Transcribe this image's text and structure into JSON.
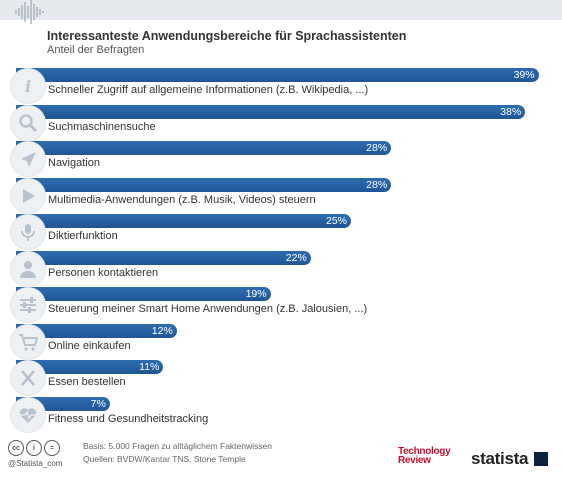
{
  "title": "Interessanteste Anwendungsbereiche für Sprachassistenten",
  "subtitle": "Anteil der Befragten",
  "chart_data": {
    "type": "bar",
    "orientation": "horizontal",
    "title": "Interessanteste Anwendungsbereiche für Sprachassistenten",
    "subtitle": "Anteil der Befragten",
    "xlim": [
      0,
      40
    ],
    "categories": [
      "Schneller Zugriff auf allgemeine Informationen (z.B. Wikipedia, ...)",
      "Suchmaschinensuche",
      "Navigation",
      "Multimedia-Anwendungen (z.B. Musik, Videos) steuern",
      "Diktierfunktion",
      "Personen kontaktieren",
      "Steuerung meiner Smart Home Anwendungen (z.B. Jalousien, ...)",
      "Online einkaufen",
      "Essen bestellen",
      "Fitness und Gesundheitstracking"
    ],
    "values": [
      39,
      38,
      28,
      28,
      25,
      22,
      19,
      12,
      11,
      7
    ],
    "value_labels": [
      "39%",
      "38%",
      "28%",
      "28%",
      "25%",
      "22%",
      "19%",
      "12%",
      "11%",
      "7%"
    ],
    "icons": [
      "info-icon",
      "magnifier-icon",
      "navigation-arrow-icon",
      "play-icon",
      "microphone-icon",
      "person-icon",
      "sliders-icon",
      "shopping-cart-icon",
      "cutlery-icon",
      "heartbeat-icon"
    ],
    "bar_color": "#2a639f"
  },
  "footer": {
    "handle": "@Statista_com",
    "basis": "Basis: 5.000 Fragen zu alltäglichem Faktenwissen",
    "sources": "Quellen: BVDW/Kantar TNS, Stone Temple",
    "partner_logo": "Technology Review",
    "brand": "statista"
  }
}
